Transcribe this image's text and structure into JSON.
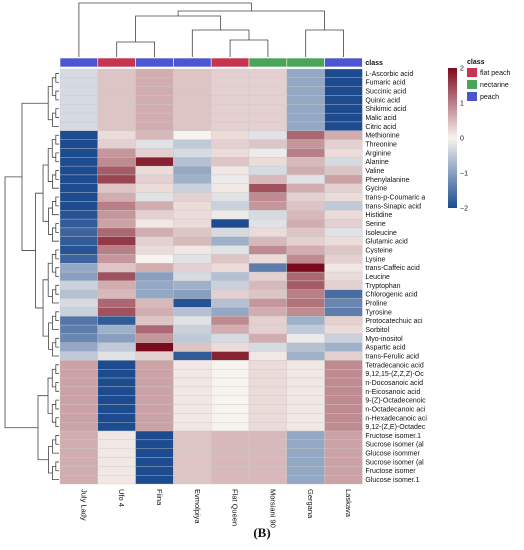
{
  "panel_label": "(B)",
  "chart_data": {
    "type": "heatmap",
    "title": "",
    "xlabel": "",
    "ylabel": "",
    "columns": [
      "July Lady",
      "Ufo 4",
      "Fiina",
      "Evmolpiya",
      "Flat Queen",
      "Morsiani 90",
      "Gergana",
      "Laskava"
    ],
    "column_class": [
      "peach",
      "flat peach",
      "peach",
      "peach",
      "flat peach",
      "nectarine",
      "nectarine",
      "peach"
    ],
    "rows": [
      "L-Ascorbic acid",
      "Fumaric acid",
      "Succinic acid",
      "Quinic acid",
      "Shikimic acid",
      "Malic acid",
      "Citric acid",
      "Methionine",
      "Threonine",
      "Arginine",
      "Alanine",
      "Valine",
      "Phenylalanine",
      "Gycine",
      "trans-p-Coumaric a",
      "trans-Sinapic acid",
      "Histidine",
      "Serine",
      "Isoleucine",
      "Glutamic acid",
      "Cysteine",
      "Lysine",
      "trans-Caffeic acid",
      "Leucine",
      "Tryptophan",
      "Chlorogenic acid",
      "Proline",
      "Tyrosine",
      "Protocatechuic aci",
      "Sorbitol",
      "Myo-inositol",
      "Aspartic acid",
      "trans-Ferulic acid",
      "Tetradecanoic acid",
      "9,12,15-(Z,Z,Z)-Oc",
      "n-Docosanoic acid",
      "n-Eicosanoic acid",
      "9-(Z)-Octadecenoic",
      "n-Octadecanoic aci",
      "n-Hexadecanoic aci",
      "9,12-(Z,E)-Octadec",
      "Fructose isomer.1",
      "Sucrose isomer (al",
      "Glucose isommer",
      "Sucrose isomer (al",
      "Fructose isomer",
      "Glucose isomer.1"
    ],
    "values": [
      [
        -0.3,
        0.4,
        0.6,
        0.4,
        0.3,
        0.3,
        -0.9,
        -2.0
      ],
      [
        -0.3,
        0.4,
        0.6,
        0.4,
        0.3,
        0.3,
        -0.9,
        -2.0
      ],
      [
        -0.3,
        0.4,
        0.6,
        0.4,
        0.3,
        0.3,
        -0.9,
        -2.0
      ],
      [
        -0.3,
        0.4,
        0.6,
        0.4,
        0.3,
        0.3,
        -0.9,
        -2.0
      ],
      [
        -0.3,
        0.4,
        0.6,
        0.4,
        0.3,
        0.3,
        -0.9,
        -2.0
      ],
      [
        -0.3,
        0.4,
        0.6,
        0.4,
        0.3,
        0.3,
        -0.9,
        -2.0
      ],
      [
        -0.3,
        0.4,
        0.6,
        0.4,
        0.3,
        0.3,
        -0.9,
        -2.0
      ],
      [
        -2.0,
        0.2,
        0.5,
        0.0,
        0.2,
        -0.2,
        1.2,
        0.6
      ],
      [
        -2.3,
        0.3,
        -0.2,
        -0.5,
        0.3,
        0.4,
        0.8,
        0.3
      ],
      [
        -2.1,
        0.8,
        0.3,
        -0.3,
        0.2,
        -0.1,
        1.0,
        0.2
      ],
      [
        -2.2,
        0.9,
        1.8,
        -0.6,
        0.4,
        0.2,
        0.5,
        -0.3
      ],
      [
        -2.0,
        1.3,
        0.2,
        -0.9,
        0.1,
        -0.3,
        0.6,
        0.4
      ],
      [
        -2.1,
        1.5,
        0.3,
        -0.8,
        -0.1,
        0.5,
        -0.2,
        0.7
      ],
      [
        -2.3,
        0.4,
        0.2,
        -0.4,
        0.1,
        1.4,
        0.6,
        0.3
      ],
      [
        -2.4,
        0.6,
        -0.2,
        0.3,
        -0.2,
        0.9,
        0.3,
        0.2
      ],
      [
        -2.2,
        1.0,
        0.6,
        0.2,
        -0.4,
        0.8,
        0.4,
        -0.5
      ],
      [
        -1.9,
        0.8,
        0.3,
        0.2,
        -0.1,
        -0.3,
        0.5,
        0.2
      ],
      [
        -1.8,
        0.7,
        0.1,
        0.2,
        -2.0,
        -0.2,
        0.6,
        0.3
      ],
      [
        -1.7,
        1.2,
        0.6,
        0.4,
        -0.3,
        0.2,
        0.4,
        -0.2
      ],
      [
        -1.8,
        1.6,
        0.3,
        0.5,
        -0.8,
        0.5,
        0.3,
        0.2
      ],
      [
        -1.9,
        1.0,
        0.2,
        0.1,
        -0.2,
        0.9,
        0.6,
        0.4
      ],
      [
        -1.7,
        0.8,
        0.0,
        -0.2,
        0.4,
        0.2,
        0.9,
        0.3
      ],
      [
        -0.9,
        0.4,
        0.6,
        0.3,
        0.2,
        -1.4,
        2.0,
        0.1
      ],
      [
        -1.0,
        1.4,
        -1.0,
        -0.3,
        -0.6,
        0.3,
        1.2,
        0.2
      ],
      [
        -0.4,
        0.6,
        -0.9,
        -0.8,
        -0.4,
        0.5,
        1.3,
        0.3
      ],
      [
        -0.6,
        0.5,
        -0.9,
        -1.0,
        0.3,
        0.4,
        1.0,
        -1.6
      ],
      [
        -0.3,
        1.2,
        0.5,
        -1.9,
        -0.6,
        0.8,
        1.1,
        -1.3
      ],
      [
        -0.4,
        1.4,
        0.6,
        -0.6,
        -0.9,
        0.6,
        0.9,
        -1.4
      ],
      [
        -1.5,
        -1.8,
        0.4,
        -0.2,
        0.9,
        0.3,
        -0.8,
        0.3
      ],
      [
        -1.4,
        -0.8,
        1.2,
        -0.4,
        0.6,
        0.3,
        -0.5,
        0.2
      ],
      [
        -1.3,
        -1.0,
        0.8,
        -0.5,
        -0.3,
        0.6,
        -0.1,
        -0.4
      ],
      [
        -0.9,
        -0.5,
        2.4,
        0.4,
        0.2,
        -0.3,
        -0.6,
        -0.8
      ],
      [
        -0.5,
        -0.2,
        0.3,
        -1.8,
        1.8,
        0.1,
        -0.8,
        0.3
      ],
      [
        0.7,
        -2.3,
        0.7,
        0.1,
        0.0,
        0.2,
        0.1,
        0.9
      ],
      [
        0.7,
        -2.3,
        0.7,
        0.1,
        0.0,
        0.2,
        0.1,
        0.9
      ],
      [
        0.7,
        -2.3,
        0.7,
        0.1,
        0.0,
        0.2,
        0.1,
        0.9
      ],
      [
        0.7,
        -2.3,
        0.7,
        0.1,
        0.0,
        0.2,
        0.1,
        0.9
      ],
      [
        0.7,
        -2.3,
        0.7,
        0.1,
        0.0,
        0.2,
        0.1,
        0.9
      ],
      [
        0.7,
        -2.3,
        0.7,
        0.1,
        0.0,
        0.2,
        0.1,
        0.9
      ],
      [
        0.7,
        -2.3,
        0.7,
        0.1,
        0.0,
        0.2,
        0.1,
        0.9
      ],
      [
        0.7,
        -2.3,
        0.7,
        0.1,
        0.0,
        0.2,
        0.1,
        0.9
      ],
      [
        0.6,
        0.1,
        -2.2,
        0.4,
        0.5,
        0.5,
        -0.9,
        0.7
      ],
      [
        0.6,
        0.1,
        -2.2,
        0.4,
        0.5,
        0.5,
        -0.9,
        0.7
      ],
      [
        0.6,
        0.1,
        -2.2,
        0.4,
        0.5,
        0.5,
        -0.9,
        0.7
      ],
      [
        0.6,
        0.1,
        -2.2,
        0.4,
        0.5,
        0.5,
        -0.9,
        0.7
      ],
      [
        0.6,
        0.1,
        -2.2,
        0.4,
        0.5,
        0.5,
        -0.9,
        0.7
      ],
      [
        0.6,
        0.1,
        -2.2,
        0.4,
        0.5,
        0.5,
        -0.9,
        0.7
      ]
    ],
    "color_scale": {
      "range": [
        -2,
        2
      ],
      "ticks": [
        2,
        1,
        0,
        -1,
        -2
      ],
      "tick_labels": [
        "2",
        "1",
        "0",
        "−1",
        "−2"
      ],
      "colors": {
        "low": "#1c4b8f",
        "mid": "#f7f3ef",
        "high": "#7a0b1e"
      }
    },
    "legend": {
      "title": "class",
      "placement": "right",
      "entries": [
        {
          "label": "flat peach",
          "color": "#c8344f"
        },
        {
          "label": "nectarine",
          "color": "#4aa55a"
        },
        {
          "label": "peach",
          "color": "#4d56d2"
        }
      ]
    },
    "annotation_row_label": "class"
  }
}
